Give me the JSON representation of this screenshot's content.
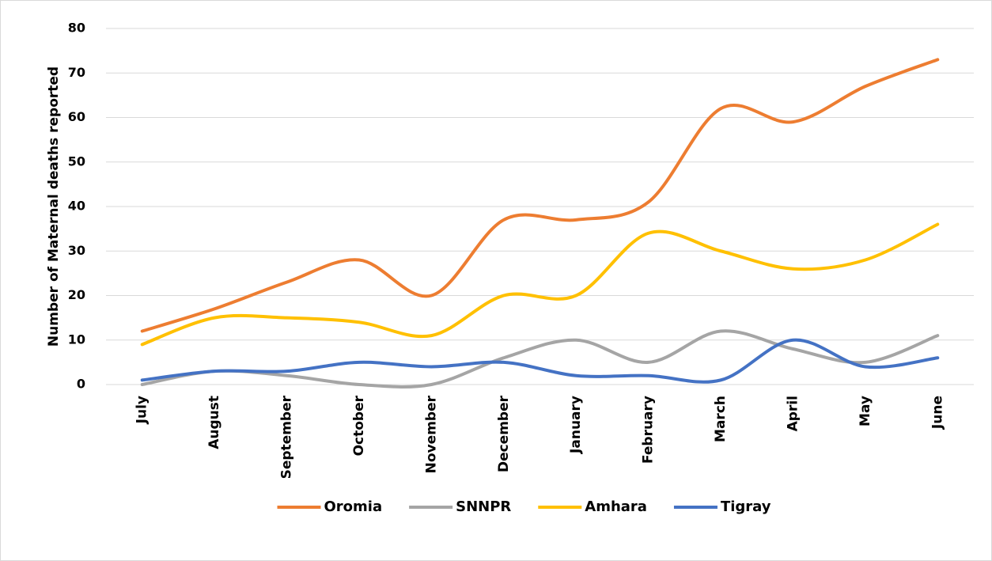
{
  "chart_data": {
    "type": "line",
    "y_label": "Number of Maternal deaths reported",
    "categories": [
      "July",
      "August",
      "September",
      "October",
      "November",
      "December",
      "January",
      "February",
      "March",
      "April",
      "May",
      "June"
    ],
    "series": [
      {
        "name": "Oromia",
        "color": "#ED7D31",
        "values": [
          12,
          17,
          23,
          28,
          20,
          37,
          37,
          41,
          62,
          59,
          67,
          73
        ]
      },
      {
        "name": "SNNPR",
        "color": "#A5A5A5",
        "values": [
          0,
          3,
          2,
          0,
          0,
          6,
          10,
          5,
          12,
          8,
          5,
          11
        ]
      },
      {
        "name": "Amhara",
        "color": "#FFC000",
        "values": [
          9,
          15,
          15,
          14,
          11,
          20,
          20,
          34,
          30,
          26,
          28,
          36
        ]
      },
      {
        "name": "Tigray",
        "color": "#4472C4",
        "values": [
          1,
          3,
          3,
          5,
          4,
          5,
          2,
          2,
          1,
          10,
          4,
          6
        ]
      }
    ],
    "ylim": [
      0,
      80
    ],
    "yticks": [
      0,
      10,
      20,
      30,
      40,
      50,
      60,
      70,
      80
    ],
    "grid": true,
    "legend": "bottom",
    "smooth": true
  }
}
